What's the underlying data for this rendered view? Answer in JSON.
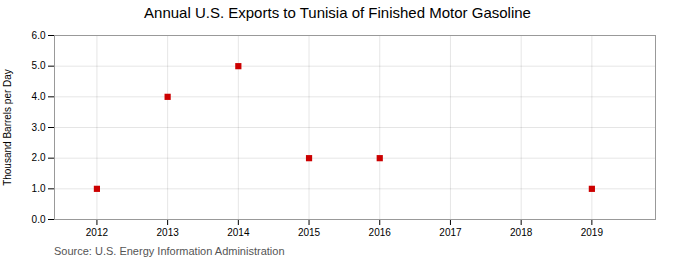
{
  "chart_data": {
    "type": "scatter",
    "title": "Annual U.S. Exports to Tunisia of Finished Motor Gasoline",
    "ylabel": "Thousand Barrels per Day",
    "annotations": [
      "Source: U.S. Energy Information Administration"
    ],
    "x": [
      2012,
      2013,
      2014,
      2015,
      2016,
      2019
    ],
    "values": [
      1.0,
      4.0,
      5.0,
      2.0,
      2.0,
      1.0
    ],
    "color": "#cc0000",
    "marker": "square",
    "xlim": [
      2011.4,
      2019.9
    ],
    "xticks": [
      2012,
      2013,
      2014,
      2015,
      2016,
      2017,
      2018,
      2019
    ],
    "ylim": [
      0,
      6
    ],
    "yticks": [
      {
        "value": 0,
        "label": "0.0"
      },
      {
        "value": 1,
        "label": "1.0"
      },
      {
        "value": 2,
        "label": "2.0"
      },
      {
        "value": 3,
        "label": "3.0"
      },
      {
        "value": 4,
        "label": "4.0"
      },
      {
        "value": 5,
        "label": "5.0"
      },
      {
        "value": 6,
        "label": "6.0"
      }
    ],
    "grid": true
  }
}
